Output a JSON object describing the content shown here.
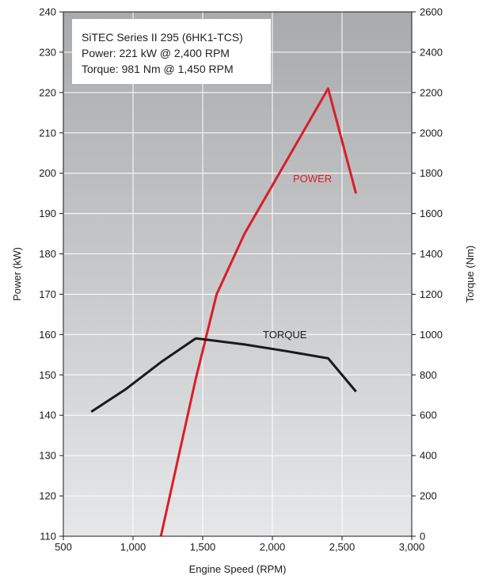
{
  "chart_data": {
    "type": "line",
    "info_box": {
      "line1": "SiTEC Series II 295 (6HK1-TCS)",
      "line2": "Power: 221 kW @ 2,400 RPM",
      "line3": "Torque: 981 Nm @ 1,450 RPM"
    },
    "xlabel": "Engine Speed (RPM)",
    "ylabel_left": "Power (kW)",
    "ylabel_right": "Torque (Nm)",
    "xlim": [
      500,
      3000
    ],
    "ylim_left": [
      110,
      240
    ],
    "ylim_right": [
      0,
      2600
    ],
    "x_ticks": [
      {
        "value": 500,
        "label": "500"
      },
      {
        "value": 1000,
        "label": "1,000"
      },
      {
        "value": 1500,
        "label": "1,500"
      },
      {
        "value": 2000,
        "label": "2,000"
      },
      {
        "value": 2500,
        "label": "2,500"
      },
      {
        "value": 3000,
        "label": "3,000"
      }
    ],
    "y_left_ticks": [
      {
        "value": 110,
        "label": "110"
      },
      {
        "value": 120,
        "label": "120"
      },
      {
        "value": 130,
        "label": "130"
      },
      {
        "value": 140,
        "label": "140"
      },
      {
        "value": 150,
        "label": "150"
      },
      {
        "value": 160,
        "label": "160"
      },
      {
        "value": 170,
        "label": "170"
      },
      {
        "value": 180,
        "label": "180"
      },
      {
        "value": 190,
        "label": "190"
      },
      {
        "value": 200,
        "label": "200"
      },
      {
        "value": 210,
        "label": "210"
      },
      {
        "value": 220,
        "label": "220"
      },
      {
        "value": 230,
        "label": "230"
      },
      {
        "value": 240,
        "label": "240"
      }
    ],
    "y_right_ticks": [
      {
        "value": 0,
        "label": "0"
      },
      {
        "value": 200,
        "label": "200"
      },
      {
        "value": 400,
        "label": "400"
      },
      {
        "value": 600,
        "label": "600"
      },
      {
        "value": 800,
        "label": "800"
      },
      {
        "value": 1000,
        "label": "1000"
      },
      {
        "value": 1200,
        "label": "1200"
      },
      {
        "value": 1400,
        "label": "1400"
      },
      {
        "value": 1600,
        "label": "1600"
      },
      {
        "value": 1800,
        "label": "1800"
      },
      {
        "value": 2000,
        "label": "2000"
      },
      {
        "value": 2200,
        "label": "2200"
      },
      {
        "value": 2400,
        "label": "2400"
      },
      {
        "value": 2600,
        "label": "2600"
      }
    ],
    "grid": true,
    "series": [
      {
        "name": "POWER",
        "axis": "left",
        "color": "#d81e2a",
        "x": [
          1200,
          1450,
          1600,
          1800,
          2000,
          2200,
          2400,
          2600
        ],
        "y": [
          110,
          149,
          170,
          185,
          197,
          209,
          221,
          195
        ]
      },
      {
        "name": "TORQUE",
        "axis": "right",
        "color": "#1a1a1a",
        "x": [
          700,
          950,
          1200,
          1450,
          1800,
          2100,
          2400,
          2600
        ],
        "y": [
          617,
          730,
          863,
          981,
          951,
          918,
          882,
          717
        ]
      }
    ]
  }
}
